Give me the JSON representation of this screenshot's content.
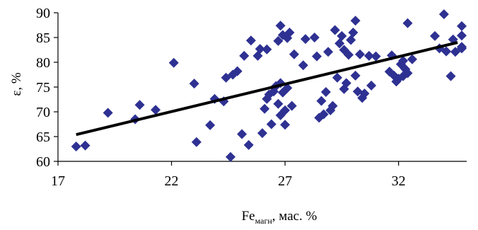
{
  "chart_data": {
    "type": "scatter",
    "xlabel": "Fe",
    "xlabel_sub": "магн",
    "xlabel_suffix": ", мас. %",
    "ylabel": "ε, %",
    "xlim": [
      17,
      35
    ],
    "ylim": [
      60,
      90
    ],
    "xticks": [
      17,
      22,
      27,
      32
    ],
    "yticks": [
      60,
      65,
      70,
      75,
      80,
      85,
      90
    ],
    "grid": false,
    "legend": "none",
    "marker_color": "#2e3192",
    "trend_color": "#000000",
    "trendline": {
      "x": [
        17.8,
        34.6
      ],
      "y": [
        65.4,
        84.0
      ]
    },
    "points": [
      {
        "x": 17.8,
        "y": 63.0
      },
      {
        "x": 18.2,
        "y": 63.2
      },
      {
        "x": 19.2,
        "y": 69.8
      },
      {
        "x": 20.4,
        "y": 68.5
      },
      {
        "x": 20.6,
        "y": 71.4
      },
      {
        "x": 21.3,
        "y": 70.4
      },
      {
        "x": 22.1,
        "y": 79.9
      },
      {
        "x": 23.0,
        "y": 75.7
      },
      {
        "x": 23.1,
        "y": 63.9
      },
      {
        "x": 23.7,
        "y": 67.3
      },
      {
        "x": 23.9,
        "y": 72.6
      },
      {
        "x": 24.3,
        "y": 72.1
      },
      {
        "x": 24.4,
        "y": 76.9
      },
      {
        "x": 24.6,
        "y": 60.9
      },
      {
        "x": 24.7,
        "y": 77.5
      },
      {
        "x": 24.9,
        "y": 78.2
      },
      {
        "x": 25.1,
        "y": 65.5
      },
      {
        "x": 25.2,
        "y": 81.3
      },
      {
        "x": 25.4,
        "y": 63.3
      },
      {
        "x": 25.5,
        "y": 84.4
      },
      {
        "x": 25.8,
        "y": 81.3
      },
      {
        "x": 25.9,
        "y": 82.7
      },
      {
        "x": 26.0,
        "y": 65.7
      },
      {
        "x": 26.1,
        "y": 70.6
      },
      {
        "x": 26.2,
        "y": 72.6
      },
      {
        "x": 26.2,
        "y": 82.6
      },
      {
        "x": 26.3,
        "y": 73.5
      },
      {
        "x": 26.4,
        "y": 67.5
      },
      {
        "x": 26.5,
        "y": 74.1
      },
      {
        "x": 26.6,
        "y": 75.2
      },
      {
        "x": 26.7,
        "y": 84.3
      },
      {
        "x": 26.7,
        "y": 71.6
      },
      {
        "x": 26.8,
        "y": 75.8
      },
      {
        "x": 26.8,
        "y": 69.3
      },
      {
        "x": 26.8,
        "y": 87.4
      },
      {
        "x": 26.9,
        "y": 85.5
      },
      {
        "x": 26.9,
        "y": 73.9
      },
      {
        "x": 27.0,
        "y": 67.4
      },
      {
        "x": 27.0,
        "y": 70.3
      },
      {
        "x": 27.1,
        "y": 74.8
      },
      {
        "x": 27.1,
        "y": 84.9
      },
      {
        "x": 27.2,
        "y": 86.0
      },
      {
        "x": 27.3,
        "y": 71.2
      },
      {
        "x": 27.4,
        "y": 81.6
      },
      {
        "x": 27.8,
        "y": 79.4
      },
      {
        "x": 27.9,
        "y": 84.7
      },
      {
        "x": 28.3,
        "y": 85.0
      },
      {
        "x": 28.4,
        "y": 81.2
      },
      {
        "x": 28.5,
        "y": 68.8
      },
      {
        "x": 28.6,
        "y": 72.2
      },
      {
        "x": 28.7,
        "y": 69.5
      },
      {
        "x": 28.8,
        "y": 74.0
      },
      {
        "x": 28.9,
        "y": 82.1
      },
      {
        "x": 29.0,
        "y": 70.3
      },
      {
        "x": 29.1,
        "y": 71.2
      },
      {
        "x": 29.2,
        "y": 86.5
      },
      {
        "x": 29.3,
        "y": 76.9
      },
      {
        "x": 29.4,
        "y": 83.8
      },
      {
        "x": 29.5,
        "y": 85.3
      },
      {
        "x": 29.6,
        "y": 82.5
      },
      {
        "x": 29.6,
        "y": 74.6
      },
      {
        "x": 29.7,
        "y": 75.8
      },
      {
        "x": 29.8,
        "y": 81.5
      },
      {
        "x": 29.9,
        "y": 84.5
      },
      {
        "x": 30.0,
        "y": 86.0
      },
      {
        "x": 30.1,
        "y": 88.4
      },
      {
        "x": 30.1,
        "y": 77.3
      },
      {
        "x": 30.2,
        "y": 74.1
      },
      {
        "x": 30.3,
        "y": 81.6
      },
      {
        "x": 30.4,
        "y": 72.8
      },
      {
        "x": 30.5,
        "y": 73.7
      },
      {
        "x": 30.7,
        "y": 81.3
      },
      {
        "x": 30.8,
        "y": 75.3
      },
      {
        "x": 31.0,
        "y": 81.2
      },
      {
        "x": 31.6,
        "y": 78.1
      },
      {
        "x": 31.7,
        "y": 81.4
      },
      {
        "x": 31.8,
        "y": 77.3
      },
      {
        "x": 31.9,
        "y": 76.1
      },
      {
        "x": 32.0,
        "y": 76.7
      },
      {
        "x": 32.1,
        "y": 79.6
      },
      {
        "x": 32.2,
        "y": 77.2
      },
      {
        "x": 32.2,
        "y": 80.3
      },
      {
        "x": 32.3,
        "y": 78.6
      },
      {
        "x": 32.4,
        "y": 77.8
      },
      {
        "x": 32.4,
        "y": 87.9
      },
      {
        "x": 32.6,
        "y": 80.6
      },
      {
        "x": 33.6,
        "y": 85.3
      },
      {
        "x": 33.8,
        "y": 82.8
      },
      {
        "x": 34.0,
        "y": 89.7
      },
      {
        "x": 34.1,
        "y": 82.2
      },
      {
        "x": 34.3,
        "y": 77.2
      },
      {
        "x": 34.4,
        "y": 84.6
      },
      {
        "x": 34.5,
        "y": 82.1
      },
      {
        "x": 34.9,
        "y": 83.1
      },
      {
        "x": 35.6,
        "y": 87.3
      },
      {
        "x": 35.8,
        "y": 82.8
      },
      {
        "x": 36.1,
        "y": 85.4
      }
    ]
  }
}
